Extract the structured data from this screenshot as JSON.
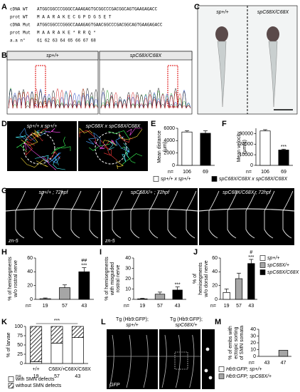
{
  "panel_letters": [
    "A",
    "B",
    "C",
    "D",
    "E",
    "F",
    "G",
    "H",
    "I",
    "J",
    "K",
    "L",
    "M"
  ],
  "sequence": {
    "rows": [
      {
        "label": "cDNA WT",
        "text": "ATGGCGGCCCGGGCCAAAGAGTGCGGCCCGACGGCAGTGAAGAGACC"
      },
      {
        "label": "prot WT",
        "text": "M  A  A  R  A  K  E  C  G  P  D  G  S  E  T"
      },
      {
        "label": "cDNA Mut",
        "text": "ATGGCGGCCCGGGCCAAAGAGTGAACGGCCCGACGGCAGTGAAGAGACC"
      },
      {
        "label": "prot Mut",
        "text": "M  A  A  R  A  K  E  *        R  R  Q  *"
      },
      {
        "label": "a.a n°",
        "text": "61 62 63 64 65 66 67 68"
      }
    ]
  },
  "chromatogram": {
    "labels": [
      "sp+/+",
      "spC68X/C68X"
    ]
  },
  "fish": {
    "labels": [
      "sp+/+",
      "spC68X/C68X"
    ]
  },
  "tracks": {
    "labels": [
      "sp+/+ x sp+/+",
      "spC68X x spC68X/C68X"
    ]
  },
  "nerves": {
    "labels": [
      "sp+/+ ; 72hpf",
      "spC68X/+ ; 72hpf",
      "spC68X/C68X ; 72hpf"
    ],
    "stain": [
      "zn-5",
      "zn-5"
    ]
  },
  "gfp": {
    "labels": [
      [
        "Tg (Hb9:GFP);",
        "sp+/+"
      ],
      [
        "Tg (Hb9:GFP);",
        "spC68X/+"
      ]
    ],
    "stain": "GFP"
  },
  "chart_data": [
    {
      "type": "bar",
      "ylabel": [
        "Mean distance",
        "(μm)"
      ],
      "n_label": "n=",
      "n": [
        "106",
        "69"
      ],
      "values": [
        5400,
        5200
      ],
      "errors": [
        200,
        400
      ],
      "colors": [
        "#ffffff",
        "#000000"
      ],
      "ylim": [
        0,
        6000
      ],
      "yticks": [
        0,
        2000,
        4000,
        6000
      ],
      "legend": [
        {
          "name": "sp+/+ x sp+/+",
          "color": "#ffffff"
        },
        {
          "name": "spC68X/C68X x spC68X/C68X",
          "color": "#000000"
        }
      ]
    },
    {
      "type": "bar",
      "ylabel": [
        "Mean velocity",
        "(μm/s)"
      ],
      "n_label": "n=",
      "n": [
        "106",
        "69"
      ],
      "values": [
        32500,
        14500
      ],
      "errors": [
        1200,
        800
      ],
      "colors": [
        "#ffffff",
        "#000000"
      ],
      "ylim": [
        0,
        35000
      ],
      "yticks": [
        0,
        10000,
        20000,
        30000
      ],
      "annotations": [
        {
          "index": 1,
          "text": "***"
        }
      ]
    },
    {
      "type": "bar",
      "ylabel": [
        "% of hemisegments",
        "w/o rostral nerve"
      ],
      "n_label": "n=",
      "n": [
        "19",
        "57",
        "43"
      ],
      "values": [
        1,
        17,
        40
      ],
      "errors": [
        1,
        4,
        6
      ],
      "colors": [
        "#ffffff",
        "#a6a6a6",
        "#000000"
      ],
      "ylim": [
        0,
        60
      ],
      "yticks": [
        0,
        20,
        40,
        60
      ],
      "annotations": [
        {
          "index": 2,
          "text": "***"
        },
        {
          "index": 2,
          "text": "##"
        }
      ]
    },
    {
      "type": "bar",
      "ylabel": [
        "% of hemisegments",
        "with misguided",
        "rostral nerve"
      ],
      "n_label": "n=",
      "n": [
        "19",
        "57",
        "43"
      ],
      "values": [
        0.5,
        5,
        9
      ],
      "errors": [
        0.5,
        2,
        3
      ],
      "colors": [
        "#ffffff",
        "#a6a6a6",
        "#000000"
      ],
      "ylim": [
        0,
        40
      ],
      "yticks": [
        0,
        10,
        20,
        30,
        40
      ],
      "annotations": [
        {
          "index": 2,
          "text": "***"
        }
      ]
    },
    {
      "type": "bar",
      "ylabel": [
        "% of",
        "hemisegments",
        "w/o dorsal nerve"
      ],
      "n_label": "n=",
      "n": [
        "19",
        "57",
        "43"
      ],
      "values": [
        10,
        30,
        52
      ],
      "errors": [
        5,
        8,
        6
      ],
      "colors": [
        "#ffffff",
        "#a6a6a6",
        "#000000"
      ],
      "ylim": [
        0,
        60
      ],
      "yticks": [
        0,
        20,
        40,
        60
      ],
      "annotations": [
        {
          "index": 2,
          "text": "***"
        },
        {
          "index": 2,
          "text": "#"
        }
      ],
      "legend": [
        {
          "name": "sp+/+",
          "color": "#ffffff"
        },
        {
          "name": "spC68X/+",
          "color": "#a6a6a6"
        },
        {
          "name": "spC68X/C68X",
          "color": "#000000"
        }
      ]
    },
    {
      "type": "stacked",
      "ylabel": [
        "% of larvae"
      ],
      "n_label": "n=",
      "n": [
        "19",
        "57",
        "43"
      ],
      "categories": [
        "+/+",
        "C68X/+",
        "C68X/C68X"
      ],
      "series": [
        {
          "name": "with SMN defects",
          "color": "#ffffff",
          "values": [
            5,
            55,
            70
          ]
        },
        {
          "name": "without SMN defects",
          "color": "#ffffff",
          "pattern": "hatch",
          "values": [
            95,
            45,
            30
          ]
        }
      ],
      "ylim": [
        0,
        100
      ],
      "yticks": [
        0,
        25,
        50,
        75,
        100
      ],
      "bracket_text": "***"
    },
    {
      "type": "bar",
      "ylabel": [
        "% of embs with",
        "ectopic sorting",
        "of SMN somata"
      ],
      "n_label": "n=",
      "n": [
        "43",
        "47"
      ],
      "values": [
        0,
        9
      ],
      "colors": [
        "#ffffff",
        "#a6a6a6"
      ],
      "ylim": [
        0,
        40
      ],
      "yticks": [
        0,
        10,
        20,
        30,
        40
      ],
      "legend": [
        {
          "name": "Hb9:GFP; sp+/+",
          "color": "#ffffff"
        },
        {
          "name": "Hb9:GFP; spC68X/+",
          "color": "#a6a6a6"
        }
      ]
    }
  ]
}
